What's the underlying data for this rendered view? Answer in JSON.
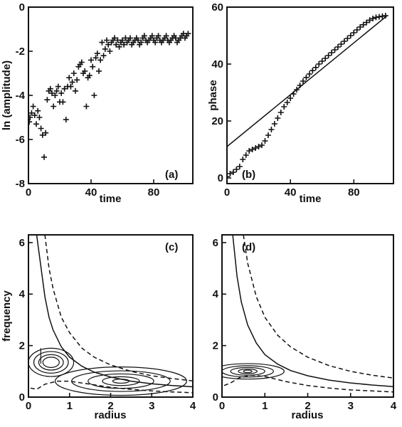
{
  "chart_data": [
    {
      "panel": "(a)",
      "type": "scatter",
      "marker": "+",
      "xlabel": "time",
      "ylabel": "ln (amplitude)",
      "xlim": [
        0,
        105
      ],
      "ylim": [
        -8,
        0
      ],
      "xticks": [
        "0",
        "40",
        "80"
      ],
      "yticks": [
        "0",
        "-2",
        "-4",
        "-6",
        "-8"
      ],
      "points": [
        [
          0.5,
          -5.2
        ],
        [
          1,
          -5.0
        ],
        [
          2,
          -4.8
        ],
        [
          3,
          -4.5
        ],
        [
          4,
          -4.9
        ],
        [
          5,
          -5.3
        ],
        [
          6,
          -4.7
        ],
        [
          7,
          -5.0
        ],
        [
          8,
          -5.5
        ],
        [
          9,
          -5.8
        ],
        [
          10,
          -6.8
        ],
        [
          11,
          -5.7
        ],
        [
          12,
          -4.2
        ],
        [
          13,
          -3.8
        ],
        [
          14,
          -3.7
        ],
        [
          15,
          -3.9
        ],
        [
          16,
          -4.5
        ],
        [
          17,
          -4.0
        ],
        [
          18,
          -3.8
        ],
        [
          19,
          -3.6
        ],
        [
          20,
          -4.3
        ],
        [
          21,
          -3.9
        ],
        [
          22,
          -4.3
        ],
        [
          23,
          -3.7
        ],
        [
          24,
          -5.1
        ],
        [
          25,
          -3.6
        ],
        [
          26,
          -3.2
        ],
        [
          27,
          -3.6
        ],
        [
          28,
          -3.4
        ],
        [
          29,
          -3.0
        ],
        [
          30,
          -3.8
        ],
        [
          31,
          -3.3
        ],
        [
          32,
          -2.7
        ],
        [
          33,
          -2.6
        ],
        [
          34,
          -2.5
        ],
        [
          35,
          -3.0
        ],
        [
          36,
          -2.9
        ],
        [
          37,
          -4.5
        ],
        [
          38,
          -3.2
        ],
        [
          39,
          -3.1
        ],
        [
          40,
          -2.4
        ],
        [
          41,
          -2.7
        ],
        [
          42,
          -4.0
        ],
        [
          43,
          -2.3
        ],
        [
          44,
          -2.1
        ],
        [
          45,
          -2.9
        ],
        [
          46,
          -2.4
        ],
        [
          47,
          -1.6
        ],
        [
          48,
          -2.2
        ],
        [
          49,
          -1.9
        ],
        [
          50,
          -1.5
        ],
        [
          51,
          -1.7
        ],
        [
          52,
          -2.0
        ],
        [
          53,
          -1.6
        ],
        [
          54,
          -1.5
        ],
        [
          55,
          -1.4
        ],
        [
          56,
          -1.7
        ],
        [
          57,
          -1.5
        ],
        [
          58,
          -1.8
        ],
        [
          59,
          -1.6
        ],
        [
          60,
          -1.5
        ],
        [
          61,
          -1.7
        ],
        [
          62,
          -1.4
        ],
        [
          63,
          -1.6
        ],
        [
          64,
          -1.5
        ],
        [
          65,
          -1.4
        ],
        [
          66,
          -1.7
        ],
        [
          67,
          -1.6
        ],
        [
          68,
          -1.5
        ],
        [
          69,
          -1.4
        ],
        [
          70,
          -1.5
        ],
        [
          71,
          -1.7
        ],
        [
          72,
          -1.6
        ],
        [
          73,
          -1.4
        ],
        [
          74,
          -1.3
        ],
        [
          75,
          -1.5
        ],
        [
          76,
          -1.6
        ],
        [
          77,
          -1.5
        ],
        [
          78,
          -1.4
        ],
        [
          79,
          -1.3
        ],
        [
          80,
          -1.5
        ],
        [
          81,
          -1.6
        ],
        [
          82,
          -1.4
        ],
        [
          83,
          -1.3
        ],
        [
          84,
          -1.5
        ],
        [
          85,
          -1.6
        ],
        [
          86,
          -1.5
        ],
        [
          87,
          -1.4
        ],
        [
          88,
          -1.3
        ],
        [
          89,
          -1.5
        ],
        [
          90,
          -1.6
        ],
        [
          91,
          -1.5
        ],
        [
          92,
          -1.4
        ],
        [
          93,
          -1.3
        ],
        [
          94,
          -1.4
        ],
        [
          95,
          -1.6
        ],
        [
          96,
          -1.5
        ],
        [
          97,
          -1.4
        ],
        [
          98,
          -1.3
        ],
        [
          99,
          -1.2
        ],
        [
          100,
          -1.4
        ],
        [
          101,
          -1.3
        ],
        [
          102,
          -1.2
        ]
      ]
    },
    {
      "panel": "(b)",
      "type": "line",
      "xlabel": "time",
      "ylabel": "phase",
      "xlim": [
        0,
        105
      ],
      "ylim": [
        -2,
        60
      ],
      "xticks": [
        "0",
        "40",
        "80"
      ],
      "yticks": [
        "0",
        "20",
        "40",
        "60"
      ],
      "series": [
        {
          "kind": "markers",
          "marker": "+",
          "x": [
            0,
            2,
            4,
            6,
            8,
            10,
            12,
            14,
            16,
            18,
            20,
            22,
            24,
            26,
            28,
            30,
            32,
            34,
            36,
            38,
            40,
            42,
            44,
            46,
            48,
            50,
            52,
            54,
            56,
            58,
            60,
            62,
            64,
            66,
            68,
            70,
            72,
            74,
            76,
            78,
            80,
            82,
            84,
            86,
            88,
            90,
            92,
            94,
            96,
            98,
            100
          ],
          "y": [
            0.5,
            1.5,
            2.0,
            3.0,
            4.0,
            6.5,
            8.0,
            9.5,
            10.0,
            10.5,
            11.0,
            11.5,
            13.0,
            15.0,
            17.0,
            19.0,
            21.0,
            23.0,
            25.0,
            26.5,
            28.0,
            29.5,
            31.0,
            32.5,
            34.0,
            35.3,
            36.5,
            37.7,
            38.8,
            40.0,
            41.0,
            42.0,
            43.0,
            44.0,
            45.0,
            46.0,
            47.0,
            48.0,
            49.0,
            50.0,
            51.0,
            52.0,
            53.0,
            53.8,
            54.6,
            55.4,
            56.0,
            56.4,
            56.6,
            56.8,
            57.0
          ]
        },
        {
          "kind": "line",
          "x": [
            0,
            101
          ],
          "y": [
            11,
            57
          ]
        }
      ]
    },
    {
      "panel": "(c)",
      "type": "line",
      "xlabel": "radius",
      "ylabel": "frequency",
      "xlim": [
        0,
        4
      ],
      "ylim": [
        0,
        6.3
      ],
      "xticks": [
        "0",
        "1",
        "2",
        "3",
        "4"
      ],
      "yticks": [
        "0",
        "2",
        "4",
        "6"
      ],
      "series": [
        {
          "kind": "solid",
          "x": [
            0.2,
            0.3,
            0.4,
            0.5,
            0.6,
            0.8,
            1.0,
            1.3,
            1.6,
            2.0,
            2.5,
            3.0,
            3.5,
            4.0
          ],
          "y": [
            6.3,
            5.1,
            3.9,
            3.1,
            2.6,
            1.95,
            1.55,
            1.2,
            0.97,
            0.78,
            0.62,
            0.52,
            0.45,
            0.4
          ]
        },
        {
          "kind": "dashed",
          "x": [
            0.4,
            0.5,
            0.6,
            0.8,
            1.0,
            1.3,
            1.6,
            2.0,
            2.5,
            3.0,
            3.5,
            4.0
          ],
          "y": [
            6.3,
            5.0,
            4.2,
            3.1,
            2.5,
            1.9,
            1.55,
            1.25,
            1.0,
            0.83,
            0.72,
            0.63
          ]
        },
        {
          "kind": "dashed",
          "x": [
            0.05,
            0.2,
            0.4,
            0.7,
            1.0,
            1.5,
            2.0,
            2.5,
            3.0,
            3.5,
            4.0
          ],
          "y": [
            0.35,
            0.3,
            0.5,
            0.62,
            0.62,
            0.5,
            0.38,
            0.3,
            0.24,
            0.2,
            0.17
          ]
        }
      ]
    },
    {
      "panel": "(d)",
      "type": "line",
      "xlabel": "radius",
      "ylabel": "",
      "xlim": [
        0,
        4
      ],
      "ylim": [
        0,
        6.3
      ],
      "xticks": [
        "0",
        "1",
        "2",
        "3",
        "4"
      ],
      "yticks": [
        "0",
        "2",
        "4",
        "6"
      ],
      "series": [
        {
          "kind": "solid",
          "x": [
            0.25,
            0.35,
            0.45,
            0.6,
            0.8,
            1.0,
            1.3,
            1.6,
            2.0,
            2.5,
            3.0,
            3.5,
            4.0
          ],
          "y": [
            6.3,
            4.7,
            3.7,
            2.8,
            2.1,
            1.65,
            1.28,
            1.03,
            0.83,
            0.66,
            0.55,
            0.47,
            0.41
          ]
        },
        {
          "kind": "dashed",
          "x": [
            0.5,
            0.6,
            0.8,
            1.0,
            1.3,
            1.6,
            2.0,
            2.5,
            3.0,
            3.5,
            4.0
          ],
          "y": [
            6.3,
            5.2,
            3.9,
            3.1,
            2.4,
            1.95,
            1.55,
            1.22,
            1.0,
            0.85,
            0.74
          ]
        },
        {
          "kind": "dashed",
          "x": [
            0.05,
            0.2,
            0.4,
            0.7,
            1.0,
            1.5,
            2.0,
            2.5,
            3.0,
            3.5,
            4.0
          ],
          "y": [
            0.45,
            0.55,
            0.75,
            0.85,
            0.8,
            0.6,
            0.45,
            0.35,
            0.28,
            0.24,
            0.2
          ]
        }
      ]
    }
  ]
}
